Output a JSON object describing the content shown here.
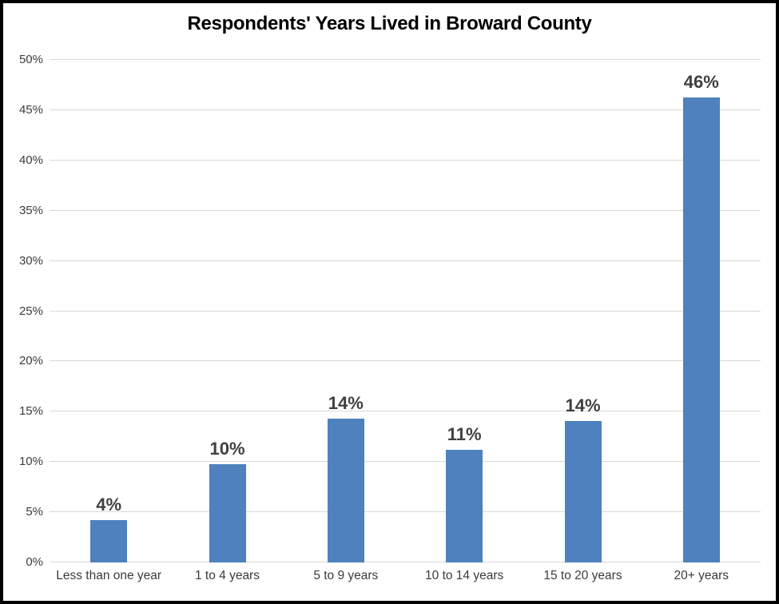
{
  "frame": {
    "background": "#ffffff",
    "border_color": "#000000"
  },
  "chart_data": {
    "type": "bar",
    "title": "Respondents' Years Lived in Broward County",
    "categories": [
      "Less than one year",
      "1 to 4 years",
      "5 to 9 years",
      "10 to 14 years",
      "15 to 20 years",
      "20+ years"
    ],
    "values": [
      4.2,
      9.8,
      14.3,
      11.2,
      14.1,
      46.3
    ],
    "value_labels": [
      "4%",
      "10%",
      "14%",
      "11%",
      "14%",
      "46%"
    ],
    "xlabel": "",
    "ylabel": "",
    "ylim": [
      0,
      50
    ],
    "ytick_step": 5,
    "ytick_labels": [
      "0%",
      "5%",
      "10%",
      "15%",
      "20%",
      "25%",
      "30%",
      "35%",
      "40%",
      "45%",
      "50%"
    ],
    "grid": true,
    "legend": "none",
    "colors": {
      "bar": "#4E81BD",
      "value_label": "#404040",
      "axis_text": "#3b3b3b",
      "gridline": "#D9D9D9",
      "title_text": "#000000"
    }
  }
}
